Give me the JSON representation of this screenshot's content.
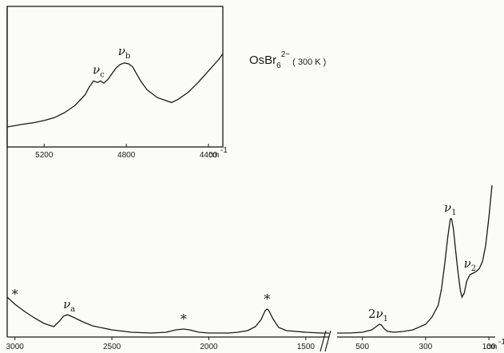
{
  "chart_data": [
    {
      "type": "line",
      "id": "main",
      "title": "OsBr6^2- (300 K)",
      "title_parts": {
        "base": "OsBr",
        "sub": "6",
        "sup": "2−",
        "cond": "( 300 K )"
      },
      "x_unit": "cm-1",
      "x_unit_label": "cm",
      "unit_exp": "-1",
      "axis_break": "//",
      "segments": [
        {
          "name": "high-frequency",
          "xlim": [
            3040,
            1380
          ],
          "ticks": [
            3000,
            2500,
            2000,
            1500
          ],
          "tick_labels": [
            "3000",
            "2500",
            "2000",
            "1500"
          ],
          "x": [
            3040,
            3000,
            2950,
            2900,
            2850,
            2800,
            2770,
            2750,
            2730,
            2700,
            2650,
            2600,
            2500,
            2400,
            2300,
            2220,
            2170,
            2130,
            2100,
            2050,
            2000,
            1950,
            1900,
            1850,
            1800,
            1760,
            1730,
            1710,
            1700,
            1690,
            1670,
            1640,
            1600,
            1500,
            1420,
            1380
          ],
          "y": [
            50,
            41,
            32,
            24,
            17,
            13,
            20,
            26,
            28,
            25,
            19,
            14,
            9,
            6,
            5,
            6,
            9,
            10,
            9,
            6,
            5,
            5,
            5,
            6,
            8,
            13,
            22,
            33,
            35,
            33,
            23,
            12,
            8,
            6,
            5,
            5
          ]
        },
        {
          "name": "low-frequency",
          "xlim": [
            580,
            80
          ],
          "ticks": [
            500,
            300,
            100
          ],
          "tick_labels": [
            "500",
            "300",
            "100"
          ],
          "x": [
            580,
            540,
            500,
            470,
            450,
            445,
            440,
            430,
            420,
            400,
            370,
            340,
            300,
            280,
            260,
            250,
            240,
            230,
            222,
            218,
            212,
            205,
            198,
            190,
            185,
            178,
            170,
            160,
            150,
            140,
            130,
            120,
            110,
            100,
            90
          ],
          "y": [
            5,
            5,
            6,
            9,
            15,
            16,
            15,
            10,
            7,
            6,
            7,
            9,
            16,
            25,
            40,
            60,
            90,
            125,
            148,
            148,
            135,
            108,
            82,
            58,
            50,
            55,
            70,
            78,
            80,
            82,
            86,
            95,
            115,
            150,
            190
          ]
        }
      ],
      "annotations": [
        {
          "text": "*",
          "x": 3000,
          "segment": 0
        },
        {
          "text": "ν",
          "sub": "a",
          "x": 2720,
          "segment": 0
        },
        {
          "text": "*",
          "x": 2130,
          "segment": 0
        },
        {
          "text": "*",
          "x": 1700,
          "segment": 0
        },
        {
          "text": "2",
          "nu": "ν",
          "sub": "1",
          "x": 450,
          "segment": 1
        },
        {
          "text": "ν",
          "sub": "1",
          "x": 222,
          "segment": 1
        },
        {
          "text": "ν",
          "sub": "2",
          "x": 160,
          "segment": 1
        }
      ],
      "grid": false
    },
    {
      "type": "line",
      "id": "inset",
      "xlim": [
        5380,
        4330
      ],
      "ticks": [
        5200,
        4800,
        4400
      ],
      "tick_labels": [
        "5200",
        "4800",
        "4400"
      ],
      "x_unit_label": "cm",
      "unit_exp": "-1",
      "x": [
        5380,
        5300,
        5250,
        5200,
        5150,
        5100,
        5050,
        5000,
        4980,
        4960,
        4940,
        4925,
        4910,
        4890,
        4870,
        4850,
        4830,
        4810,
        4790,
        4770,
        4750,
        4730,
        4700,
        4650,
        4600,
        4580,
        4550,
        4500,
        4450,
        4400,
        4350,
        4330
      ],
      "y": [
        10,
        14,
        16,
        19,
        23,
        30,
        40,
        55,
        66,
        74,
        72,
        74,
        71,
        76,
        84,
        92,
        97,
        99,
        98,
        94,
        84,
        74,
        62,
        51,
        46,
        44,
        48,
        58,
        72,
        88,
        104,
        112
      ],
      "annotations": [
        {
          "text": "ν",
          "sub": "c",
          "x": 4935
        },
        {
          "text": "ν",
          "sub": "b",
          "x": 4810
        }
      ]
    }
  ]
}
